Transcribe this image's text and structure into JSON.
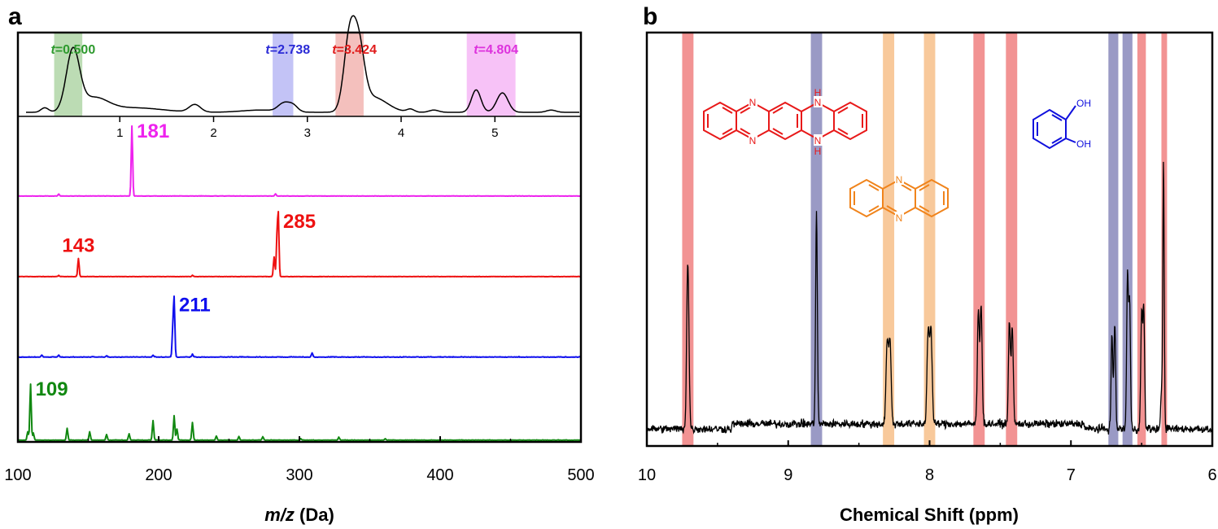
{
  "figure": {
    "panel_a": "a",
    "panel_b": "b"
  },
  "chart_data": [
    {
      "type": "line",
      "panel": "a",
      "xlabel_italic": "m/z",
      "xlabel_unit": " (Da)",
      "xlim": [
        100,
        500
      ],
      "xticks": [
        100,
        200,
        300,
        400,
        500
      ],
      "chromatogram": {
        "xlim": [
          0,
          5.9
        ],
        "xticks": [
          1,
          2,
          3,
          4,
          5
        ],
        "peaks": [
          {
            "t": 0.2,
            "h": 0.06,
            "w": 0.04
          },
          {
            "t": 0.5,
            "h": 0.8,
            "w": 0.07
          },
          {
            "t": 0.72,
            "h": 0.18,
            "w": 0.15
          },
          {
            "t": 1.15,
            "h": 0.06,
            "w": 0.3
          },
          {
            "t": 1.8,
            "h": 0.1,
            "w": 0.06
          },
          {
            "t": 2.5,
            "h": 0.03,
            "w": 0.2
          },
          {
            "t": 2.75,
            "h": 0.11,
            "w": 0.06
          },
          {
            "t": 2.85,
            "h": 0.08,
            "w": 0.05
          },
          {
            "t": 3.45,
            "h": 0.95,
            "w": 0.06
          },
          {
            "t": 3.55,
            "h": 0.75,
            "w": 0.06
          },
          {
            "t": 3.7,
            "h": 0.2,
            "w": 0.15
          },
          {
            "t": 4.1,
            "h": 0.04,
            "w": 0.04
          },
          {
            "t": 4.35,
            "h": 0.03,
            "w": 0.05
          },
          {
            "t": 4.8,
            "h": 0.3,
            "w": 0.05
          },
          {
            "t": 5.08,
            "h": 0.26,
            "w": 0.06
          },
          {
            "t": 5.6,
            "h": 0.03,
            "w": 0.05
          }
        ],
        "regions": [
          {
            "label": "t=0.500",
            "italic": "t",
            "value": "=0.500",
            "start": 0.3,
            "end": 0.6,
            "color": "#2e9a2e",
            "fill": "#bcdcb4"
          },
          {
            "label": "t=2.738",
            "italic": "t",
            "value": "=2.738",
            "start": 2.63,
            "end": 2.85,
            "color": "#2b2bd6",
            "fill": "#c3c3f6"
          },
          {
            "label": "t=3.424",
            "italic": "t",
            "value": "=3.424",
            "start": 3.3,
            "end": 3.6,
            "color": "#e01b1b",
            "fill": "#f4c0bd"
          },
          {
            "label": "t=4.804",
            "italic": "t",
            "value": "=4.804",
            "start": 4.7,
            "end": 5.22,
            "color": "#dd33dd",
            "fill": "#f7c2f7"
          }
        ]
      },
      "series": [
        {
          "label": "181",
          "color": "#ee22ee",
          "noise": 0.006,
          "peaks": [
            [
              181,
              1.0
            ],
            [
              129,
              0.03
            ],
            [
              283,
              0.03
            ]
          ],
          "label_mz": 181
        },
        {
          "label": "285",
          "color": "#ee1111",
          "noise": 0.006,
          "peaks": [
            [
              143,
              0.26
            ],
            [
              282,
              0.28
            ],
            [
              285,
              0.86
            ],
            [
              284,
              0.5
            ],
            [
              224,
              0.02
            ],
            [
              129,
              0.015
            ]
          ],
          "label_mz": 285
        },
        {
          "label": "211",
          "color": "#1010ee",
          "noise": 0.012,
          "peaks": [
            [
              211,
              0.82
            ],
            [
              210,
              0.35
            ],
            [
              224,
              0.04
            ],
            [
              309,
              0.06
            ],
            [
              196,
              0.03
            ],
            [
              117,
              0.03
            ],
            [
              129,
              0.03
            ],
            [
              163,
              0.02
            ]
          ],
          "label_mz": 211
        },
        {
          "label": "109",
          "color": "#118811",
          "noise": 0.008,
          "peaks": [
            [
              109,
              0.8
            ],
            [
              107,
              0.12
            ],
            [
              111,
              0.1
            ],
            [
              135,
              0.17
            ],
            [
              151,
              0.12
            ],
            [
              163,
              0.08
            ],
            [
              179,
              0.09
            ],
            [
              196,
              0.28
            ],
            [
              211,
              0.35
            ],
            [
              213,
              0.16
            ],
            [
              224,
              0.25
            ],
            [
              241,
              0.06
            ],
            [
              257,
              0.05
            ],
            [
              274,
              0.05
            ],
            [
              328,
              0.04
            ],
            [
              301,
              0.02
            ],
            [
              361,
              0.02
            ]
          ],
          "label_mz": 109
        }
      ]
    },
    {
      "type": "line",
      "panel": "b",
      "xlabel": "Chemical Shift (ppm)",
      "xlim": [
        10,
        6
      ],
      "xticks": [
        10,
        9,
        8,
        7,
        6
      ],
      "noise": 0.018,
      "peaks": [
        {
          "ppm": 9.71,
          "h": 0.5,
          "w": 0.008
        },
        {
          "ppm": 8.8,
          "h": 0.64,
          "w": 0.006
        },
        {
          "ppm": 8.28,
          "h": 0.25,
          "w": 0.008
        },
        {
          "ppm": 8.3,
          "h": 0.25,
          "w": 0.008
        },
        {
          "ppm": 7.99,
          "h": 0.28,
          "w": 0.008
        },
        {
          "ppm": 8.01,
          "h": 0.28,
          "w": 0.008
        },
        {
          "ppm": 7.655,
          "h": 0.34,
          "w": 0.007
        },
        {
          "ppm": 7.635,
          "h": 0.36,
          "w": 0.007
        },
        {
          "ppm": 7.435,
          "h": 0.3,
          "w": 0.007
        },
        {
          "ppm": 7.415,
          "h": 0.28,
          "w": 0.007
        },
        {
          "ppm": 6.71,
          "h": 0.28,
          "w": 0.006
        },
        {
          "ppm": 6.69,
          "h": 0.32,
          "w": 0.006
        },
        {
          "ppm": 6.6,
          "h": 0.46,
          "w": 0.006
        },
        {
          "ppm": 6.585,
          "h": 0.38,
          "w": 0.006
        },
        {
          "ppm": 6.5,
          "h": 0.34,
          "w": 0.006
        },
        {
          "ppm": 6.485,
          "h": 0.36,
          "w": 0.006
        },
        {
          "ppm": 6.345,
          "h": 0.8,
          "w": 0.005
        },
        {
          "ppm": 6.36,
          "h": 0.12,
          "w": 0.005
        }
      ],
      "bands": [
        {
          "ppm": 9.71,
          "width": 0.08,
          "color": "#f08080"
        },
        {
          "ppm": 8.8,
          "width": 0.08,
          "color": "#8888bb"
        },
        {
          "ppm": 8.29,
          "width": 0.08,
          "color": "#f7c08a"
        },
        {
          "ppm": 8.0,
          "width": 0.08,
          "color": "#f7c08a"
        },
        {
          "ppm": 7.65,
          "width": 0.08,
          "color": "#f08080"
        },
        {
          "ppm": 7.42,
          "width": 0.08,
          "color": "#f08080"
        },
        {
          "ppm": 6.7,
          "width": 0.07,
          "color": "#8888bb"
        },
        {
          "ppm": 6.6,
          "width": 0.07,
          "color": "#8888bb"
        },
        {
          "ppm": 6.5,
          "width": 0.06,
          "color": "#f08080"
        },
        {
          "ppm": 6.34,
          "width": 0.04,
          "color": "#f08080"
        }
      ],
      "structures": [
        {
          "name": "dihydro-pentacene",
          "color": "#e81919",
          "atoms": [
            "N",
            "N",
            "H",
            "N",
            "N",
            "H"
          ]
        },
        {
          "name": "phenazine",
          "color": "#f0841c",
          "atoms": [
            "N",
            "N"
          ]
        },
        {
          "name": "catechol",
          "color": "#1010dd",
          "atoms": [
            "OH",
            "OH"
          ]
        }
      ]
    }
  ]
}
